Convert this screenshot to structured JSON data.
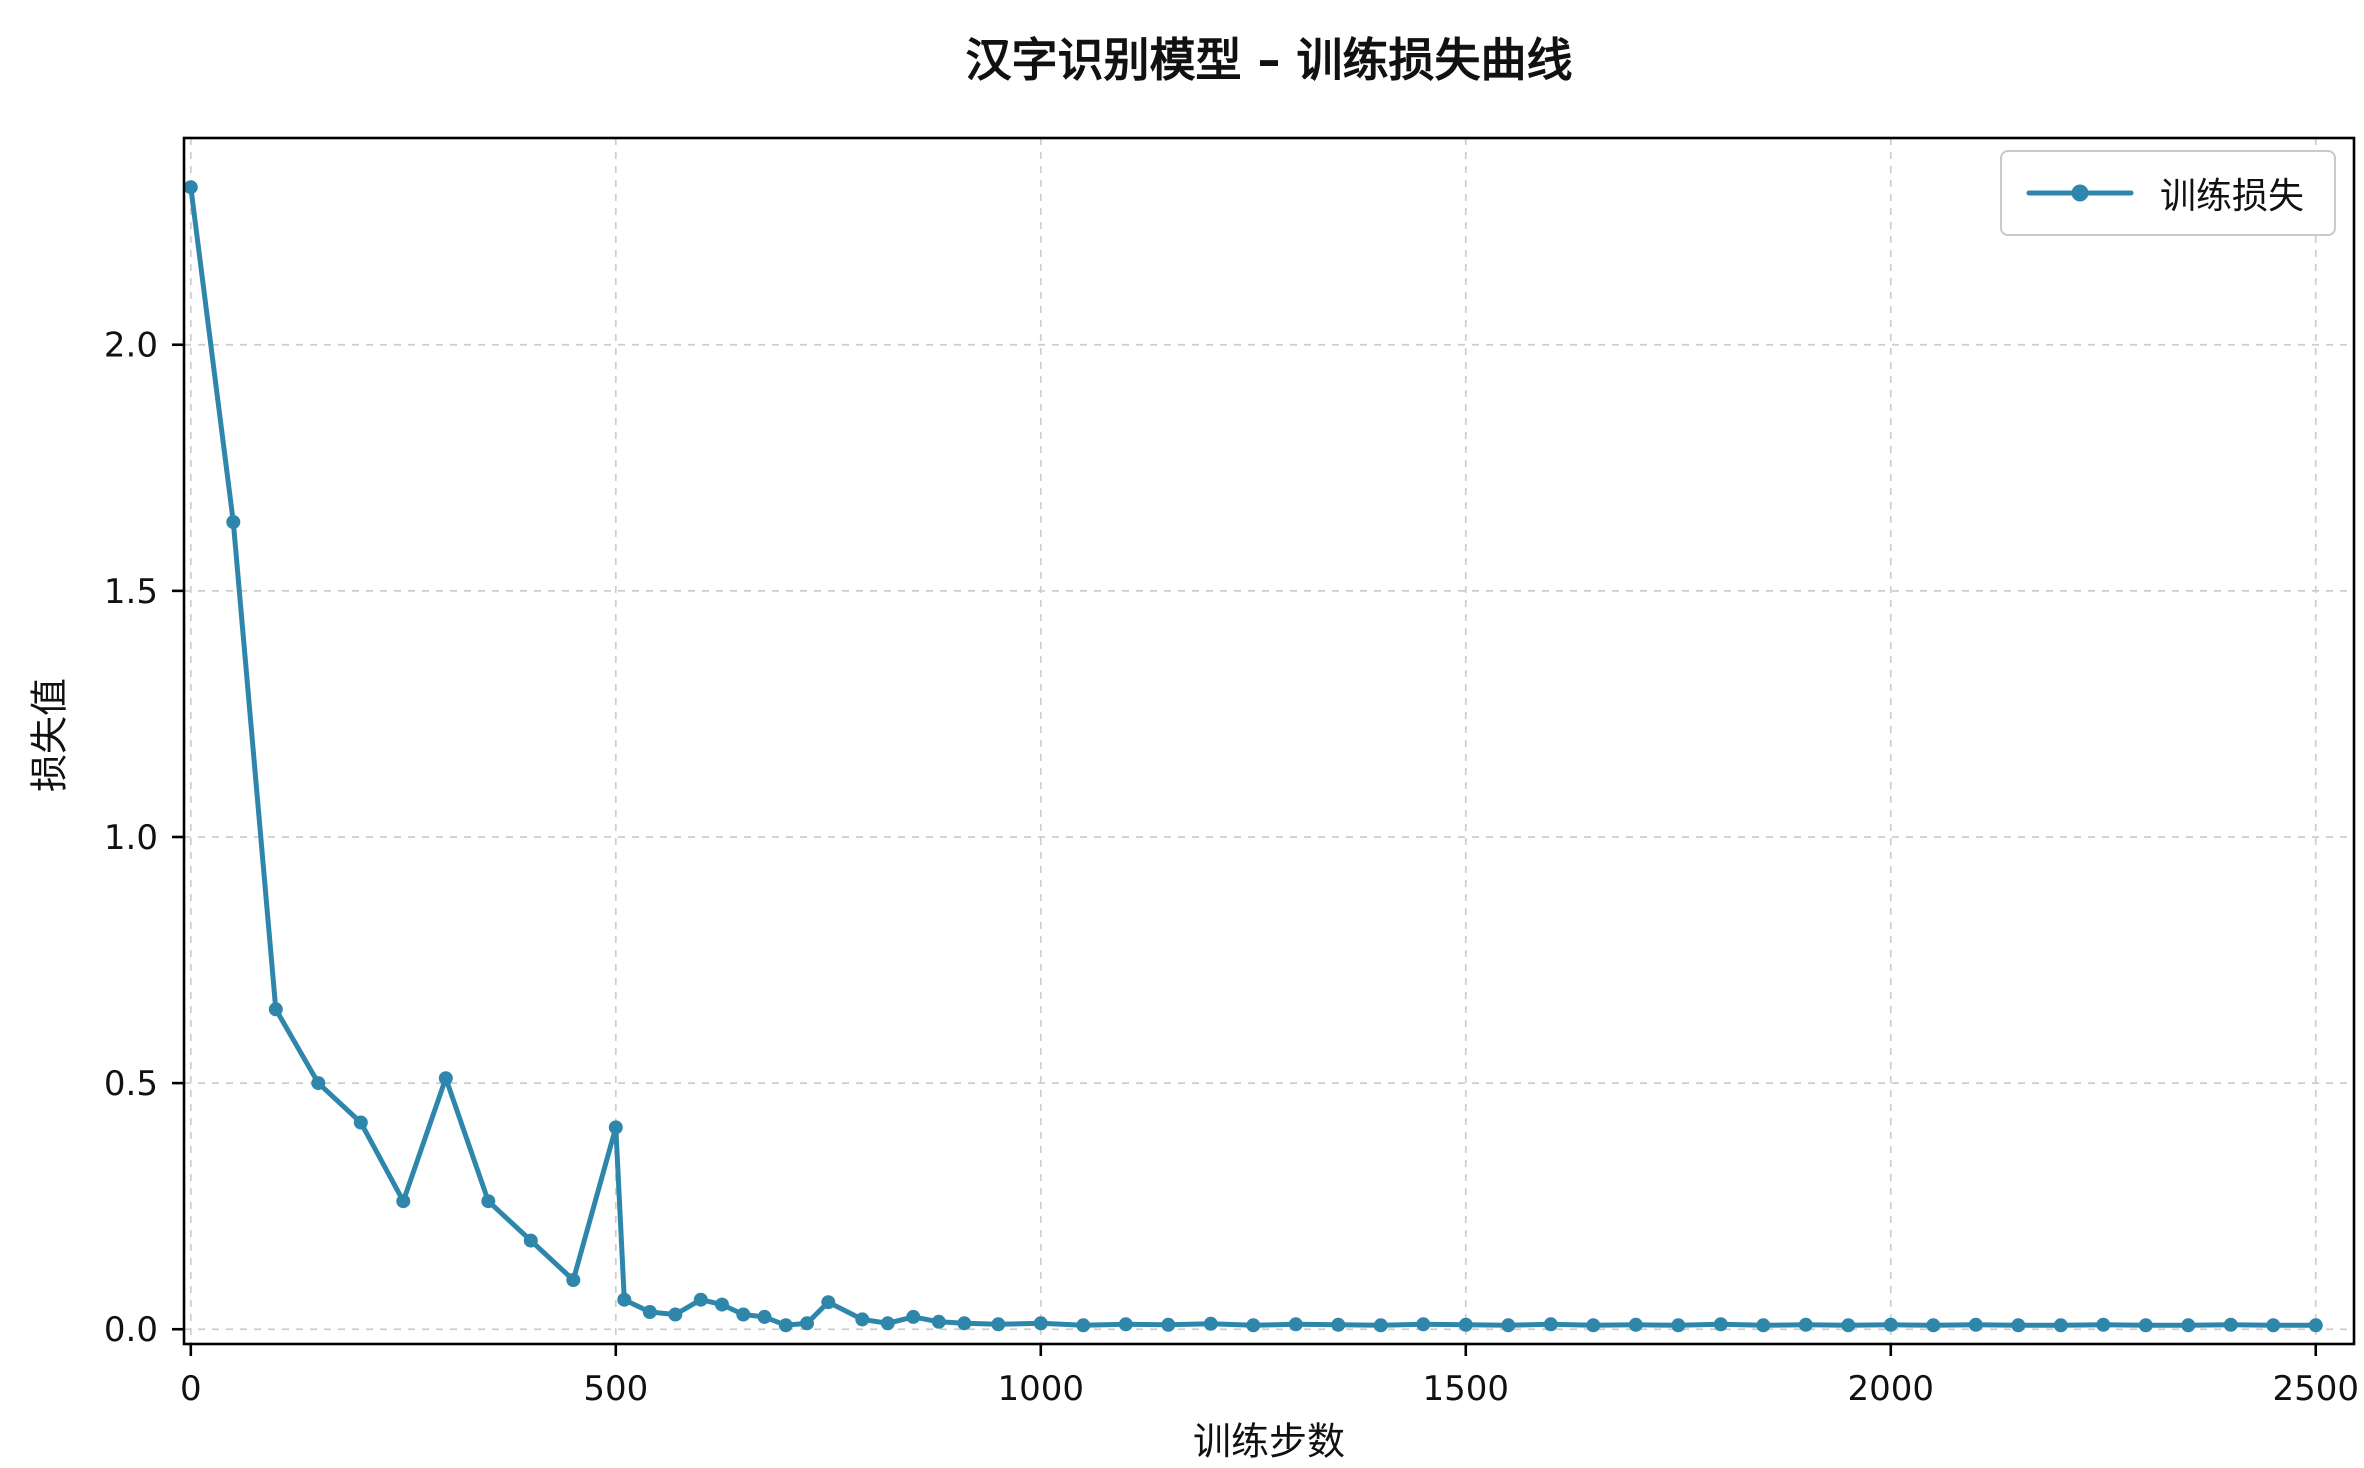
{
  "title": "汉字识别模型 – 训练损失曲线",
  "chart_data": {
    "type": "line",
    "title": "汉字识别模型 – 训练损失曲线",
    "xlabel": "训练步数",
    "ylabel": "损失值",
    "legend": {
      "position": "upper right",
      "entries": [
        "训练损失"
      ]
    },
    "line_color": "#2e86ab",
    "marker": "o",
    "grid": true,
    "grid_style": "dashed",
    "xlim": [
      -8,
      2545
    ],
    "ylim": [
      -0.03,
      2.42
    ],
    "xticks": [
      0,
      500,
      1000,
      1500,
      2000,
      2500
    ],
    "xtick_labels": [
      "0",
      "500",
      "1000",
      "1500",
      "2000",
      "2500"
    ],
    "yticks": [
      0.0,
      0.5,
      1.0,
      1.5,
      2.0
    ],
    "ytick_labels": [
      "0.0",
      "0.5",
      "1.0",
      "1.5",
      "2.0"
    ],
    "series": [
      {
        "name": "训练损失",
        "x": [
          0,
          50,
          100,
          150,
          200,
          250,
          300,
          350,
          400,
          450,
          500,
          510,
          540,
          570,
          600,
          625,
          650,
          675,
          700,
          725,
          750,
          790,
          820,
          850,
          880,
          910,
          950,
          1000,
          1050,
          1100,
          1150,
          1200,
          1250,
          1300,
          1350,
          1400,
          1450,
          1500,
          1550,
          1600,
          1650,
          1700,
          1750,
          1800,
          1850,
          1900,
          1950,
          2000,
          2050,
          2100,
          2150,
          2200,
          2250,
          2300,
          2350,
          2400,
          2450,
          2500
        ],
        "y": [
          2.32,
          1.64,
          0.65,
          0.5,
          0.42,
          0.26,
          0.51,
          0.26,
          0.18,
          0.1,
          0.41,
          0.06,
          0.035,
          0.03,
          0.06,
          0.05,
          0.03,
          0.025,
          0.008,
          0.012,
          0.055,
          0.02,
          0.012,
          0.025,
          0.015,
          0.012,
          0.01,
          0.012,
          0.008,
          0.01,
          0.009,
          0.011,
          0.008,
          0.01,
          0.009,
          0.008,
          0.01,
          0.009,
          0.008,
          0.01,
          0.008,
          0.009,
          0.008,
          0.01,
          0.008,
          0.009,
          0.008,
          0.009,
          0.008,
          0.009,
          0.008,
          0.008,
          0.009,
          0.008,
          0.008,
          0.009,
          0.008,
          0.008
        ]
      }
    ]
  }
}
